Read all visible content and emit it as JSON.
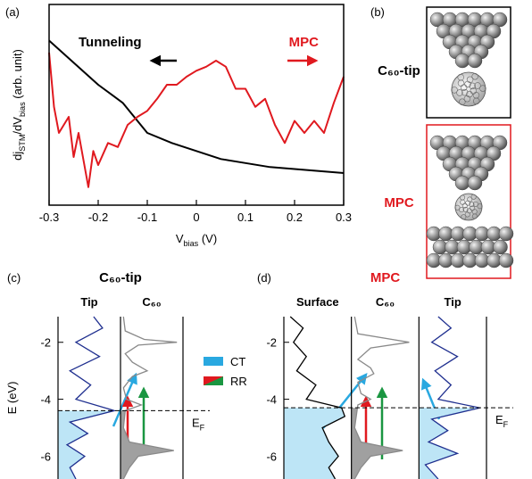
{
  "chart_data": [
    {
      "type": "line",
      "panel": "(a)",
      "xlabel": [
        "V",
        "bias",
        " (V)"
      ],
      "ylabel": [
        "dj",
        "STM",
        "/dV",
        "bias",
        " (arb. unit)"
      ],
      "xlim": [
        -0.3,
        0.3
      ],
      "ylim": [
        0,
        1
      ],
      "xticks": [
        -0.3,
        -0.2,
        -0.1,
        0,
        0.1,
        0.2,
        0.3
      ],
      "series": [
        {
          "name": "Tunneling",
          "color": "#000000",
          "x": [
            -0.3,
            -0.25,
            -0.2,
            -0.15,
            -0.1,
            -0.05,
            0,
            0.05,
            0.1,
            0.15,
            0.2,
            0.25,
            0.3
          ],
          "values": [
            0.82,
            0.71,
            0.6,
            0.51,
            0.36,
            0.31,
            0.27,
            0.23,
            0.21,
            0.19,
            0.18,
            0.17,
            0.16
          ]
        },
        {
          "name": "MPC",
          "color": "#e0191f",
          "x": [
            -0.3,
            -0.29,
            -0.28,
            -0.26,
            -0.25,
            -0.24,
            -0.22,
            -0.21,
            -0.2,
            -0.18,
            -0.16,
            -0.14,
            -0.12,
            -0.1,
            -0.08,
            -0.06,
            -0.04,
            -0.02,
            0,
            0.02,
            0.04,
            0.06,
            0.08,
            0.1,
            0.12,
            0.14,
            0.16,
            0.18,
            0.2,
            0.22,
            0.24,
            0.26,
            0.28,
            0.3
          ],
          "values": [
            0.76,
            0.49,
            0.36,
            0.44,
            0.24,
            0.36,
            0.09,
            0.27,
            0.2,
            0.31,
            0.29,
            0.4,
            0.44,
            0.47,
            0.53,
            0.6,
            0.6,
            0.64,
            0.67,
            0.69,
            0.72,
            0.69,
            0.58,
            0.58,
            0.49,
            0.53,
            0.4,
            0.31,
            0.42,
            0.36,
            0.42,
            0.36,
            0.51,
            0.64
          ]
        }
      ]
    },
    {
      "type": "density",
      "panel": "(c)",
      "title": "C₆₀-tip",
      "title_color": "#000000",
      "ylabel": "E (eV)",
      "ylim": [
        -6.8,
        -1.1
      ],
      "yticks": [
        -2,
        -4,
        -6
      ],
      "fermi": -4.4,
      "fermi_label": [
        "E",
        "F"
      ],
      "legend": [
        "CT",
        "RR"
      ],
      "columns": [
        {
          "name": "Tip",
          "color": "#1f2f8f",
          "fill": "#bde5f6",
          "energies": [
            -1.1,
            -1.5,
            -2,
            -2.5,
            -3,
            -3.5,
            -4,
            -4.4,
            -4.8,
            -5.2,
            -5.6,
            -6,
            -6.4,
            -6.8
          ],
          "dos": [
            0.6,
            0.75,
            0.3,
            0.7,
            0.2,
            0.55,
            0.3,
            0.95,
            0.2,
            0.5,
            0.15,
            0.45,
            0.2,
            0.3
          ]
        },
        {
          "name": "C₆₀",
          "color": "#8a8a8a",
          "fill": "#a0a0a0",
          "energies": [
            -1.1,
            -1.6,
            -1.9,
            -2.0,
            -2.1,
            -2.4,
            -2.7,
            -3.0,
            -3.2,
            -3.6,
            -4.0,
            -4.2,
            -4.4,
            -5.0,
            -5.5,
            -5.8,
            -6.0,
            -6.4,
            -6.8
          ],
          "dos": [
            0.05,
            0.08,
            0.4,
            0.95,
            0.3,
            0.08,
            0.2,
            0.45,
            0.2,
            0.05,
            0.1,
            0.35,
            0.08,
            0.05,
            0.15,
            0.9,
            0.3,
            0.15,
            0.05
          ]
        }
      ]
    },
    {
      "type": "density",
      "panel": "(d)",
      "title": "MPC",
      "title_color": "#e0191f",
      "ylim": [
        -6.8,
        -1.1
      ],
      "yticks": [
        -2,
        -4,
        -6
      ],
      "fermi": -4.3,
      "fermi_label": [
        "E",
        "F"
      ],
      "columns": [
        {
          "name": "Surface",
          "color": "#000000",
          "fill": "#bde5f6",
          "energies": [
            -1.1,
            -1.5,
            -2,
            -2.5,
            -3,
            -3.5,
            -4,
            -4.3,
            -4.6,
            -5,
            -5.5,
            -6,
            -6.4,
            -6.8
          ],
          "dos": [
            0.1,
            0.3,
            0.15,
            0.35,
            0.2,
            0.5,
            0.35,
            0.9,
            0.95,
            0.6,
            0.7,
            0.85,
            0.7,
            0.8
          ]
        },
        {
          "name": "C₆₀",
          "color": "#8a8a8a",
          "fill": "#a0a0a0",
          "energies": [
            -1.1,
            -1.7,
            -2.0,
            -2.2,
            -2.6,
            -2.9,
            -3.1,
            -3.4,
            -3.8,
            -4.0,
            -4.2,
            -5.0,
            -5.5,
            -5.8,
            -6.0,
            -6.4,
            -6.8
          ],
          "dos": [
            0.05,
            0.1,
            0.9,
            0.3,
            0.1,
            0.3,
            0.35,
            0.1,
            0.15,
            0.3,
            0.1,
            0.05,
            0.15,
            0.8,
            0.3,
            0.15,
            0.05
          ]
        },
        {
          "name": "Tip",
          "color": "#1f2f8f",
          "fill": "#bde5f6",
          "energies": [
            -1.1,
            -1.5,
            -2,
            -2.5,
            -3,
            -3.5,
            -4,
            -4.3,
            -4.7,
            -5.1,
            -5.5,
            -5.9,
            -6.3,
            -6.8
          ],
          "dos": [
            0.3,
            0.5,
            0.2,
            0.6,
            0.25,
            0.5,
            0.3,
            0.95,
            0.2,
            0.45,
            0.15,
            0.6,
            0.1,
            0.3
          ]
        }
      ]
    }
  ],
  "panel_b": {
    "panel": "(b)",
    "top_label": "C₆₀-tip",
    "bottom_label": "MPC"
  }
}
